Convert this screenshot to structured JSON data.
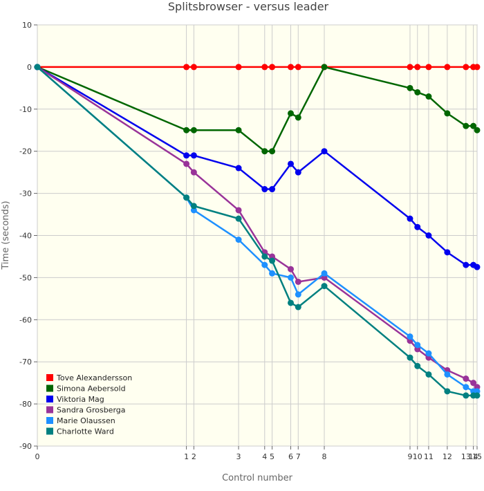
{
  "chart_data": {
    "type": "line",
    "title": "Splitsbrowser - versus leader",
    "xlabel": "Control number",
    "ylabel": "Time (seconds)",
    "ylim": [
      -90,
      10
    ],
    "yticks": [
      10,
      0,
      -10,
      -20,
      -30,
      -40,
      -50,
      -60,
      -70,
      -80,
      -90
    ],
    "x": [
      0,
      40,
      42,
      54,
      61,
      63,
      68,
      70,
      77,
      100,
      102,
      105,
      110,
      115,
      117,
      118
    ],
    "xticklabels": [
      "0",
      "1",
      "2",
      "3",
      "4",
      "5",
      "6",
      "7",
      "8",
      "9",
      "10",
      "11",
      "12",
      "13",
      "14",
      "15"
    ],
    "grid": true,
    "legend_position": "bottom-left",
    "series": [
      {
        "name": "Tove Alexandersson",
        "color": "#ff0000",
        "values": [
          0,
          0,
          0,
          0,
          0,
          0,
          0,
          0,
          0,
          0,
          0,
          0,
          0,
          0,
          0,
          0
        ]
      },
      {
        "name": "Simona Aebersold",
        "color": "#006600",
        "values": [
          0,
          -15,
          -15,
          -15,
          -20,
          -20,
          -11,
          -12,
          0,
          -5,
          -6,
          -7,
          -11,
          -14,
          -14,
          -15
        ]
      },
      {
        "name": "Viktoria Mag",
        "color": "#0000ee",
        "values": [
          0,
          -21,
          -21,
          -24,
          -29,
          -29,
          -23,
          -25,
          -20,
          -36,
          -38,
          -40,
          -44,
          -47,
          -47,
          -47.5
        ]
      },
      {
        "name": "Sandra Grosberga",
        "color": "#993399",
        "values": [
          0,
          -23,
          -25,
          -34,
          -44,
          -45,
          -48,
          -51,
          -50,
          -65,
          -67,
          -69,
          -72,
          -74,
          -75,
          -76
        ]
      },
      {
        "name": "Marie Olaussen",
        "color": "#1e90ff",
        "values": [
          0,
          -31,
          -34,
          -41,
          -47,
          -49,
          -50,
          -54,
          -49,
          -64,
          -66,
          -68,
          -73,
          -76,
          -77,
          -77
        ]
      },
      {
        "name": "Charlotte Ward",
        "color": "#008080",
        "values": [
          0,
          -31,
          -33,
          -36,
          -45,
          -46,
          -56,
          -57,
          -52,
          -69,
          -71,
          -73,
          -77,
          -78,
          -78,
          -78
        ]
      }
    ]
  }
}
